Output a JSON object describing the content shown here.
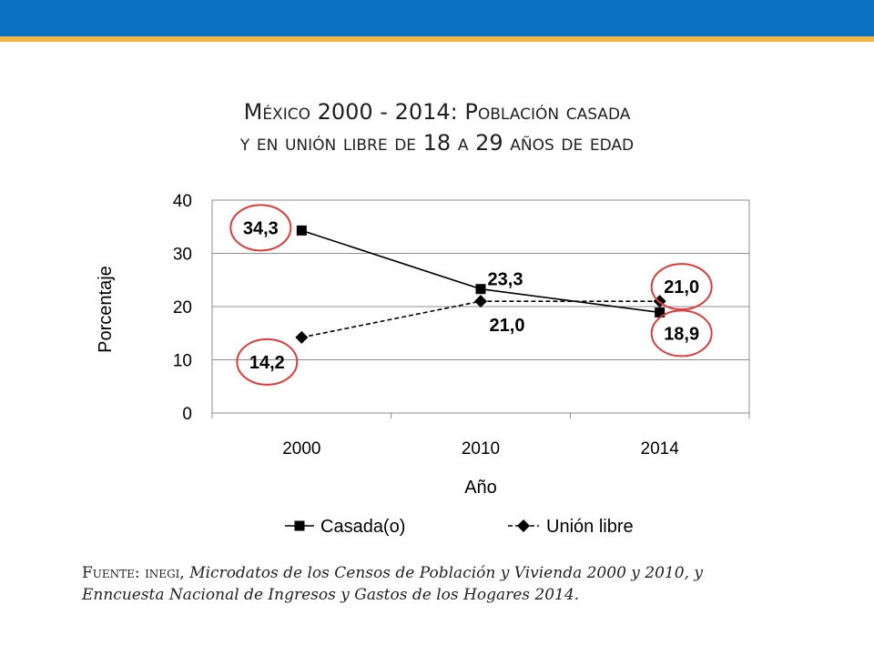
{
  "header": {
    "bar_color": "#0a72c0",
    "stripe_color": "#f2b544"
  },
  "chart_data": {
    "type": "line",
    "title_line1": "México 2000 - 2014: Población casada",
    "title_line2": "y en unión libre de 18 a 29 años de edad",
    "xlabel": "Año",
    "ylabel": "Porcentaje",
    "categories": [
      "2000",
      "2010",
      "2014"
    ],
    "ylim": [
      0,
      40
    ],
    "yticks": [
      "0",
      "10",
      "20",
      "30",
      "40"
    ],
    "grid": true,
    "legend_position": "bottom",
    "series": [
      {
        "name": "Casada(o)",
        "values": [
          34.3,
          23.3,
          18.9
        ],
        "labels": [
          "34,3",
          "23,3",
          "18,9"
        ],
        "marker": "square",
        "dash": "solid",
        "color": "#000000"
      },
      {
        "name": "Unión libre",
        "values": [
          14.2,
          21.0,
          21.0
        ],
        "labels": [
          "14,2",
          "21,0",
          "21,0"
        ],
        "marker": "diamond",
        "dash": "dashed",
        "color": "#000000"
      }
    ],
    "highlight_color": "#e03a3a"
  },
  "source": {
    "lead": "Fuente: inegi,",
    "text": "Microdatos de los Censos de Población y Vivienda 2000 y 2010, y Enncuesta Nacional de Ingresos y Gastos de los Hogares 2014."
  }
}
